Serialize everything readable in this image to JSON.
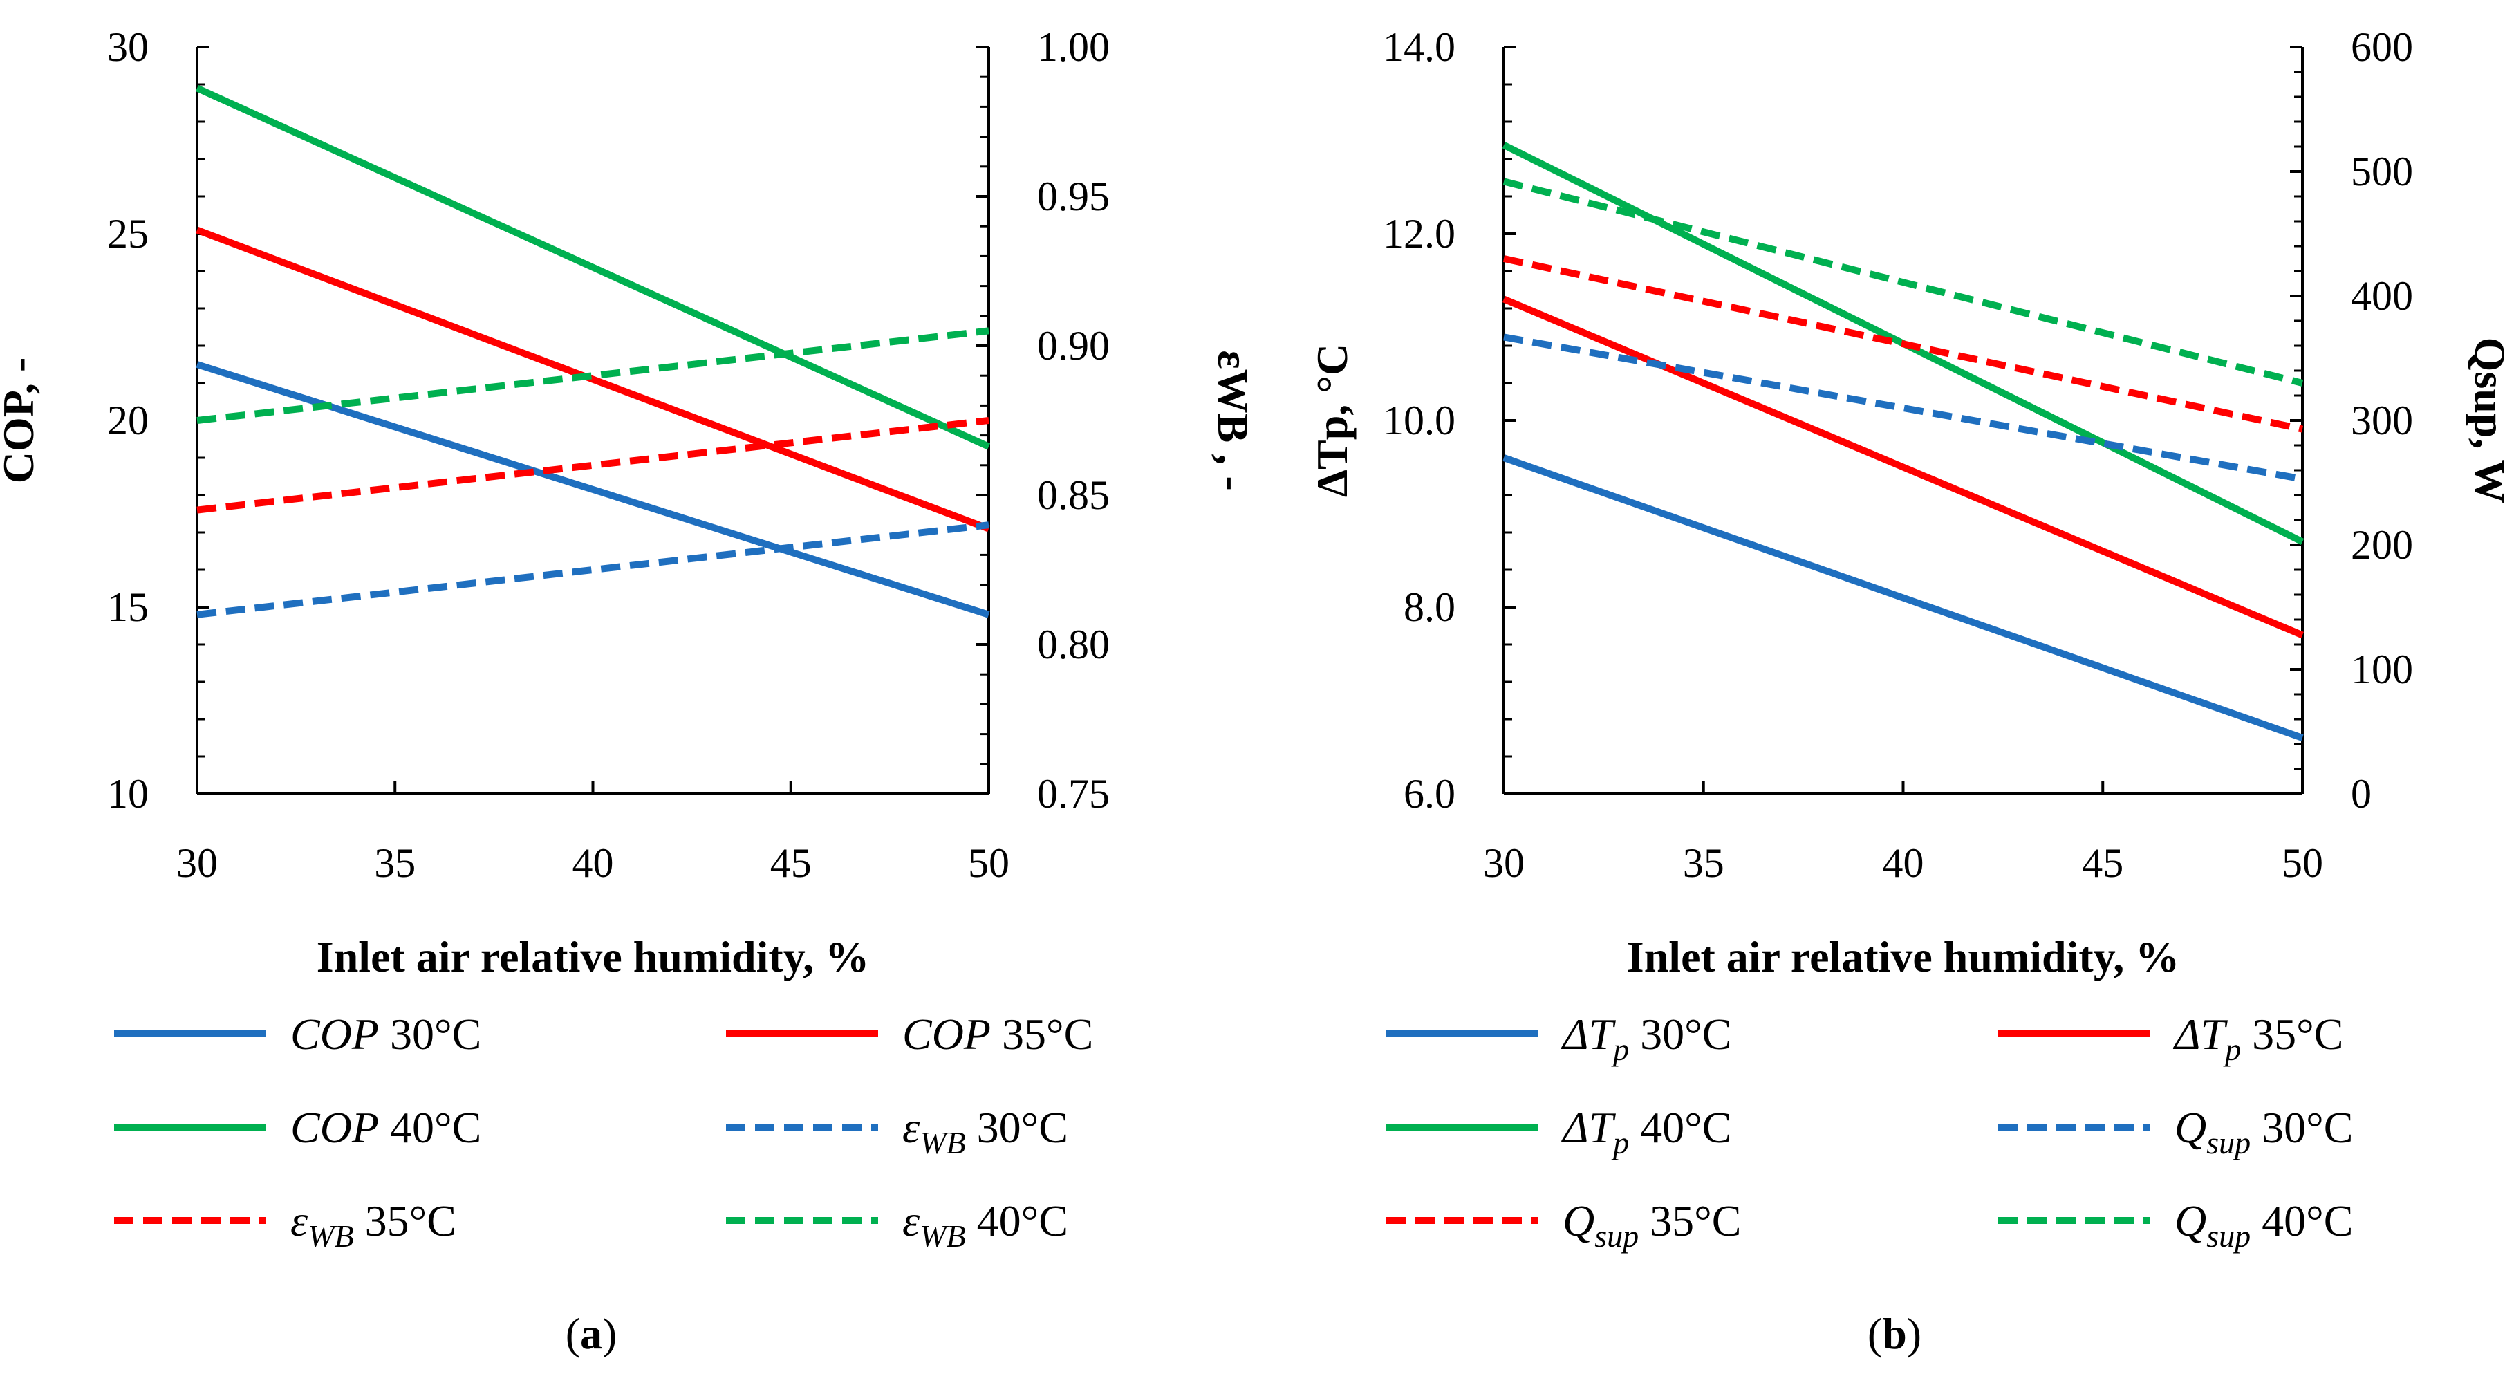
{
  "chart_data": [
    {
      "panel_label": "a",
      "type": "line",
      "x": [
        30,
        50
      ],
      "xlim": [
        30,
        50
      ],
      "xticks": [
        30,
        35,
        40,
        45,
        50
      ],
      "xtick_labels": [
        "30",
        "35",
        "40",
        "45",
        "50"
      ],
      "xlabel": "Inlet air relative humidity, %",
      "ylabel_left": "COP, -",
      "ylim_left": [
        10,
        30
      ],
      "yticks_left": [
        10,
        15,
        20,
        25,
        30
      ],
      "ytick_labels_left": [
        "10",
        "15",
        "20",
        "25",
        "30"
      ],
      "ylabel_right": "εWB , -",
      "ylim_right": [
        0.75,
        1.0
      ],
      "yticks_right": [
        0.75,
        0.8,
        0.85,
        0.9,
        0.95,
        1.0
      ],
      "ytick_labels_right": [
        "0.75",
        "0.80",
        "0.85",
        "0.90",
        "0.95",
        "1.00"
      ],
      "series": [
        {
          "name": "COP 30°C",
          "sym": "COP",
          "sub": "",
          "temp": "30°C",
          "axis": "left",
          "style": "solid",
          "color": "#1f6fbf",
          "values": [
            21.5,
            14.8
          ]
        },
        {
          "name": "COP 35°C",
          "sym": "COP",
          "sub": "",
          "temp": "35°C",
          "axis": "left",
          "style": "solid",
          "color": "#ff0000",
          "values": [
            25.1,
            17.1
          ]
        },
        {
          "name": "COP 40°C",
          "sym": "COP",
          "sub": "",
          "temp": "40°C",
          "axis": "left",
          "style": "solid",
          "color": "#00b050",
          "values": [
            28.9,
            19.3
          ]
        },
        {
          "name": "εWB 30°C",
          "sym": "ε",
          "sub": "WB",
          "temp": "30°C",
          "axis": "right",
          "style": "dashed",
          "color": "#1f6fbf",
          "values": [
            0.81,
            0.84
          ]
        },
        {
          "name": "εWB 35°C",
          "sym": "ε",
          "sub": "WB",
          "temp": "35°C",
          "axis": "right",
          "style": "dashed",
          "color": "#ff0000",
          "values": [
            0.845,
            0.875
          ]
        },
        {
          "name": "εWB 40°C",
          "sym": "ε",
          "sub": "WB",
          "temp": "40°C",
          "axis": "right",
          "style": "dashed",
          "color": "#00b050",
          "values": [
            0.875,
            0.905
          ]
        }
      ]
    },
    {
      "panel_label": "b",
      "type": "line",
      "x": [
        30,
        50
      ],
      "xlim": [
        30,
        50
      ],
      "xticks": [
        30,
        35,
        40,
        45,
        50
      ],
      "xtick_labels": [
        "30",
        "35",
        "40",
        "45",
        "50"
      ],
      "xlabel": "Inlet air relative humidity, %",
      "ylabel_left": "ΔTp, °C",
      "ylim_left": [
        6,
        14
      ],
      "yticks_left": [
        6,
        8,
        10,
        12,
        14
      ],
      "ytick_labels_left": [
        "6.0",
        "8.0",
        "10.0",
        "12.0",
        "14.0"
      ],
      "ylabel_right": "Qsup, W",
      "ylim_right": [
        0,
        600
      ],
      "yticks_right": [
        0,
        100,
        200,
        300,
        400,
        500,
        600
      ],
      "ytick_labels_right": [
        "0",
        "100",
        "200",
        "300",
        "400",
        "500",
        "600"
      ],
      "series": [
        {
          "name": "ΔTp 30°C",
          "sym": "ΔT",
          "sub": "p",
          "temp": "30°C",
          "axis": "left",
          "style": "solid",
          "color": "#1f6fbf",
          "values": [
            9.6,
            6.6
          ]
        },
        {
          "name": "ΔTp 35°C",
          "sym": "ΔT",
          "sub": "p",
          "temp": "35°C",
          "axis": "left",
          "style": "solid",
          "color": "#ff0000",
          "values": [
            11.3,
            7.7
          ]
        },
        {
          "name": "ΔTp 40°C",
          "sym": "ΔT",
          "sub": "p",
          "temp": "40°C",
          "axis": "left",
          "style": "solid",
          "color": "#00b050",
          "values": [
            12.95,
            8.7
          ]
        },
        {
          "name": "Qsup 30°C",
          "sym": "Q",
          "sub": "sup",
          "temp": "30°C",
          "axis": "right",
          "style": "dashed",
          "color": "#1f6fbf",
          "values": [
            367,
            253
          ]
        },
        {
          "name": "Qsup 35°C",
          "sym": "Q",
          "sub": "sup",
          "temp": "35°C",
          "axis": "right",
          "style": "dashed",
          "color": "#ff0000",
          "values": [
            430,
            293
          ]
        },
        {
          "name": "Qsup 40°C",
          "sym": "Q",
          "sub": "sup",
          "temp": "40°C",
          "axis": "right",
          "style": "dashed",
          "color": "#00b050",
          "values": [
            492,
            330
          ]
        }
      ]
    }
  ]
}
